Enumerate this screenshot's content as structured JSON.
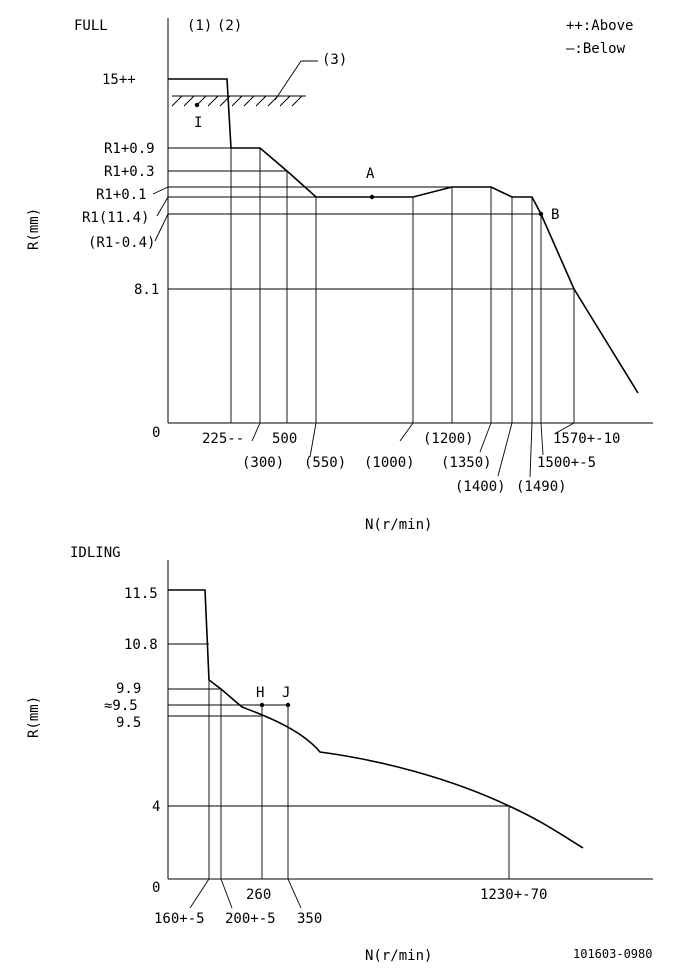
{
  "legend": {
    "above": "++:Above",
    "below": "—:Below"
  },
  "full": {
    "title": "FULL",
    "markers": {
      "m1": "(1)",
      "m2": "(2)",
      "m3": "(3)"
    },
    "y_axis_label": "R(mm)",
    "x_axis_label": "N(r/min)",
    "y_labels": {
      "l15": "15++",
      "r1p09": "R1+0.9",
      "r1p03": "R1+0.3",
      "r1p01": "R1+0.1",
      "r1": "R1(11.4)",
      "r1m04": "(R1-0.4)",
      "l81": "8.1",
      "zero": "0"
    },
    "x_labels": {
      "n225": "225--",
      "n300": "(300)",
      "n500": "500",
      "n550": "(550)",
      "n1000": "(1000)",
      "n1200": "(1200)",
      "n1350": "(1350)",
      "n1400": "(1400)",
      "n1490": "(1490)",
      "n1500": "1500+-5",
      "n1570": "1570+-10"
    },
    "points": {
      "a": "A",
      "b": "B",
      "i": "I"
    }
  },
  "idling": {
    "title": "IDLING",
    "y_axis_label": "R(mm)",
    "x_axis_label": "N(r/min)",
    "y_labels": {
      "l115": "11.5",
      "l108": "10.8",
      "l99": "9.9",
      "l95a": "≈9.5",
      "l95": "9.5",
      "l4": "4",
      "zero": "0"
    },
    "x_labels": {
      "n160": "160+-5",
      "n200": "200+-5",
      "n260": "260",
      "n350": "350",
      "n1230": "1230+-70"
    },
    "points": {
      "h": "H",
      "j": "J"
    }
  },
  "doc_id": "101603-0980"
}
